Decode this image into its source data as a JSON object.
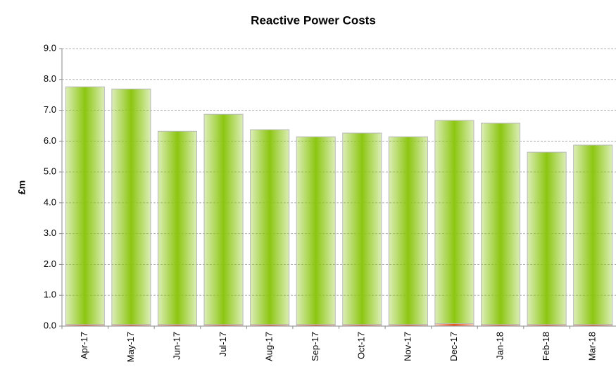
{
  "chart_data": {
    "type": "stacked_bar",
    "title": "Reactive Power Costs",
    "y_label": "£m",
    "categories": [
      "Apr-17",
      "May-17",
      "Jun-17",
      "Jul-17",
      "Aug-17",
      "Sep-17",
      "Oct-17",
      "Nov-17",
      "Dec-17",
      "Jan-18",
      "Feb-18",
      "Mar-18"
    ],
    "series": [
      {
        "color": "#e8501e",
        "values": [
          0.05,
          0.05,
          0.05,
          0.05,
          0.05,
          0.05,
          0.05,
          0.05,
          0.08,
          0.05,
          0.05,
          0.05
        ]
      },
      {
        "color": "#8cc611",
        "values": [
          7.71,
          7.64,
          6.27,
          6.82,
          6.32,
          6.09,
          6.21,
          6.09,
          6.59,
          6.53,
          5.59,
          5.82
        ]
      }
    ],
    "ylim": [
      0,
      9
    ],
    "yticks": [
      {
        "value": 0,
        "label": "0.0"
      },
      {
        "value": 1,
        "label": "1.0"
      },
      {
        "value": 2,
        "label": "2.0"
      },
      {
        "value": 3,
        "label": "3.0"
      },
      {
        "value": 4,
        "label": "4.0"
      },
      {
        "value": 5,
        "label": "5.0"
      },
      {
        "value": 6,
        "label": "6.0"
      },
      {
        "value": 7,
        "label": "7.0"
      },
      {
        "value": 8,
        "label": "8.0"
      },
      {
        "value": 9,
        "label": "9.0"
      }
    ],
    "grid": true
  }
}
